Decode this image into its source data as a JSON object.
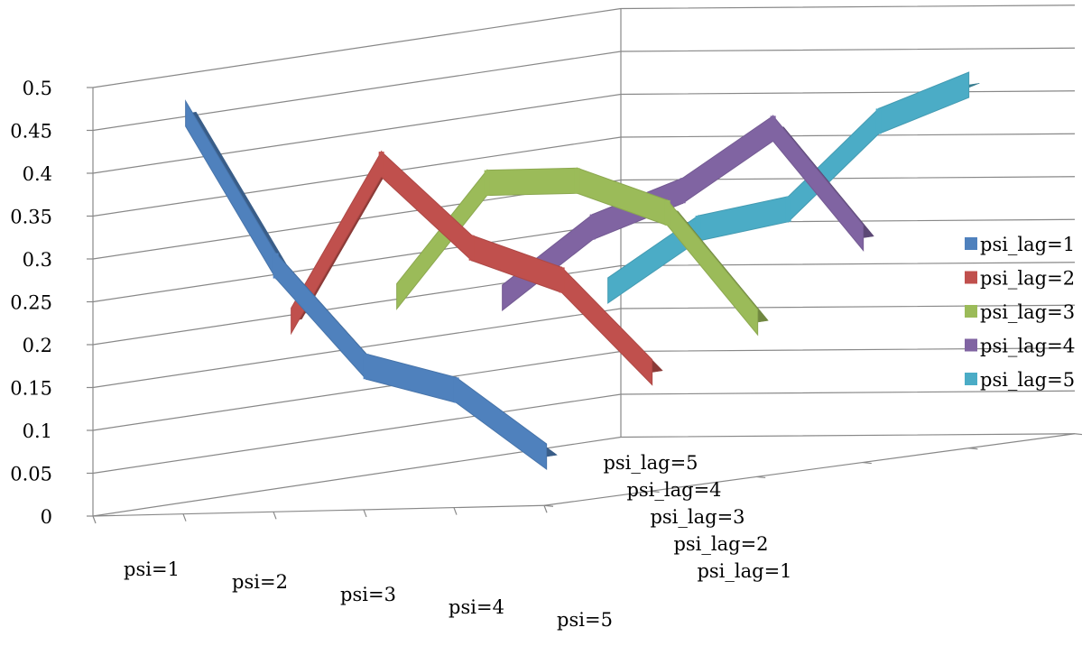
{
  "chart_data": {
    "type": "line",
    "title": "",
    "xlabel": "",
    "ylabel": "",
    "ylim": [
      0,
      0.5
    ],
    "yticks": [
      "0",
      "0.05",
      "0.1",
      "0.15",
      "0.2",
      "0.25",
      "0.3",
      "0.35",
      "0.4",
      "0.45",
      "0.5"
    ],
    "categories": [
      "psi=1",
      "psi=2",
      "psi=3",
      "psi=4",
      "psi=5"
    ],
    "depth_categories": [
      "psi_lag=1",
      "psi_lag=2",
      "psi_lag=3",
      "psi_lag=4",
      "psi_lag=5"
    ],
    "legend_position": "right",
    "grid": true,
    "series": [
      {
        "name": "psi_lag=1",
        "color": "#4F81BD",
        "values": [
          0.46,
          0.28,
          0.16,
          0.13,
          0.05
        ]
      },
      {
        "name": "psi_lag=2",
        "color": "#C0504D",
        "values": [
          0.2,
          0.38,
          0.28,
          0.24,
          0.13
        ]
      },
      {
        "name": "psi_lag=3",
        "color": "#9BBB59",
        "values": [
          0.21,
          0.34,
          0.34,
          0.3,
          0.17
        ]
      },
      {
        "name": "psi_lag=4",
        "color": "#8064A2",
        "values": [
          0.19,
          0.27,
          0.31,
          0.38,
          0.25
        ]
      },
      {
        "name": "psi_lag=5",
        "color": "#4BACC6",
        "values": [
          0.18,
          0.25,
          0.27,
          0.37,
          0.41
        ]
      }
    ]
  }
}
